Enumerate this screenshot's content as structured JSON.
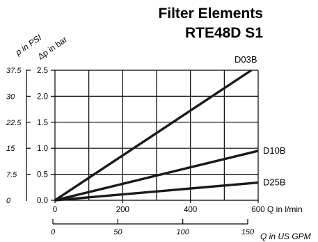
{
  "chart_data": {
    "type": "line",
    "title_line1": "Filter Elements",
    "title_line2": "RTE48D S1",
    "x_label": "Q in l/min",
    "x_ticks": [
      "0",
      "200",
      "400",
      "600"
    ],
    "x_range": [
      0,
      600
    ],
    "x2_label": "Q in US GPM",
    "x2_ticks": [
      "0",
      "50",
      "100",
      "150"
    ],
    "y_label": "Δp in bar",
    "y_ticks": [
      "0.0",
      "0.5",
      "1.0",
      "1.5",
      "2.0",
      "2.5"
    ],
    "y_range": [
      0,
      2.5
    ],
    "y2_label": "p in PSI",
    "y2_ticks": [
      "0",
      "7.5",
      "15",
      "22.5",
      "30",
      "37.5"
    ],
    "grid": true,
    "series": [
      {
        "name": "D03B",
        "x": [
          0,
          580
        ],
        "y": [
          0,
          2.5
        ]
      },
      {
        "name": "D10B",
        "x": [
          0,
          600
        ],
        "y": [
          0,
          0.95
        ]
      },
      {
        "name": "D25B",
        "x": [
          0,
          600
        ],
        "y": [
          0,
          0.34
        ]
      }
    ]
  }
}
